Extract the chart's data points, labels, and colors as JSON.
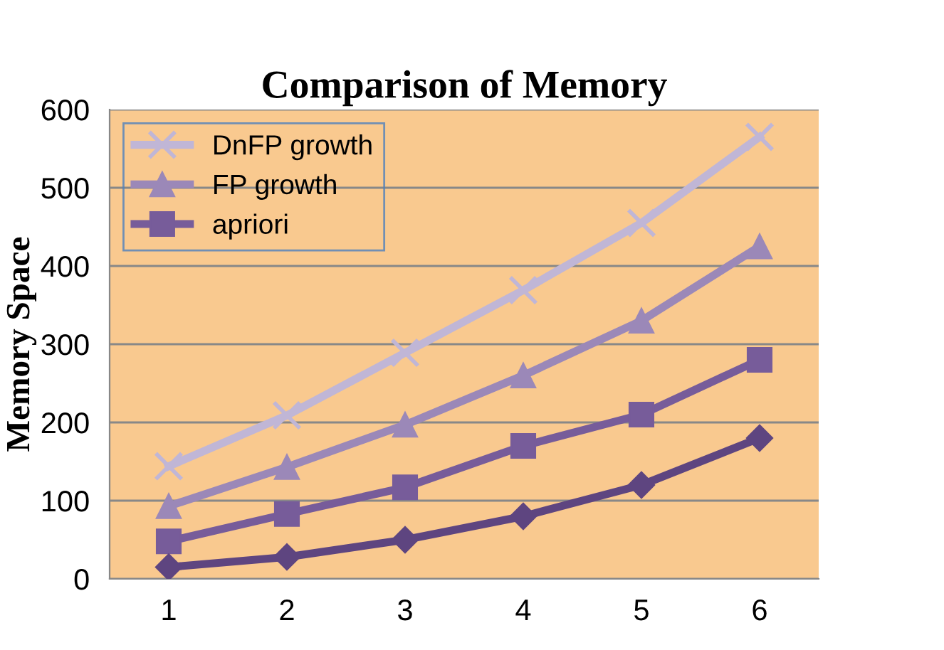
{
  "chart_data": {
    "type": "line",
    "title": "Comparison of Memory",
    "ylabel": "Memory Space",
    "categories": [
      "1",
      "2",
      "3",
      "4",
      "5",
      "6"
    ],
    "series": [
      {
        "name": "DnFP growth",
        "color": "#c0b6d6",
        "marker": "cross",
        "values": [
          144,
          209,
          289,
          369,
          455,
          565
        ]
      },
      {
        "name": "FP growth",
        "color": "#9b88b8",
        "marker": "triangle",
        "values": [
          93,
          143,
          197,
          260,
          330,
          425
        ]
      },
      {
        "name": "apriori",
        "color": "#775c9a",
        "marker": "square",
        "values": [
          48,
          83,
          117,
          170,
          210,
          280
        ]
      },
      {
        "color": "#5e4580",
        "marker": "diamond",
        "values": [
          15,
          28,
          50,
          80,
          120,
          180
        ]
      }
    ],
    "ylim": [
      0,
      600
    ],
    "yticks": [
      0,
      100,
      200,
      300,
      400,
      500,
      600
    ],
    "grid": "y",
    "legend": "top left"
  }
}
